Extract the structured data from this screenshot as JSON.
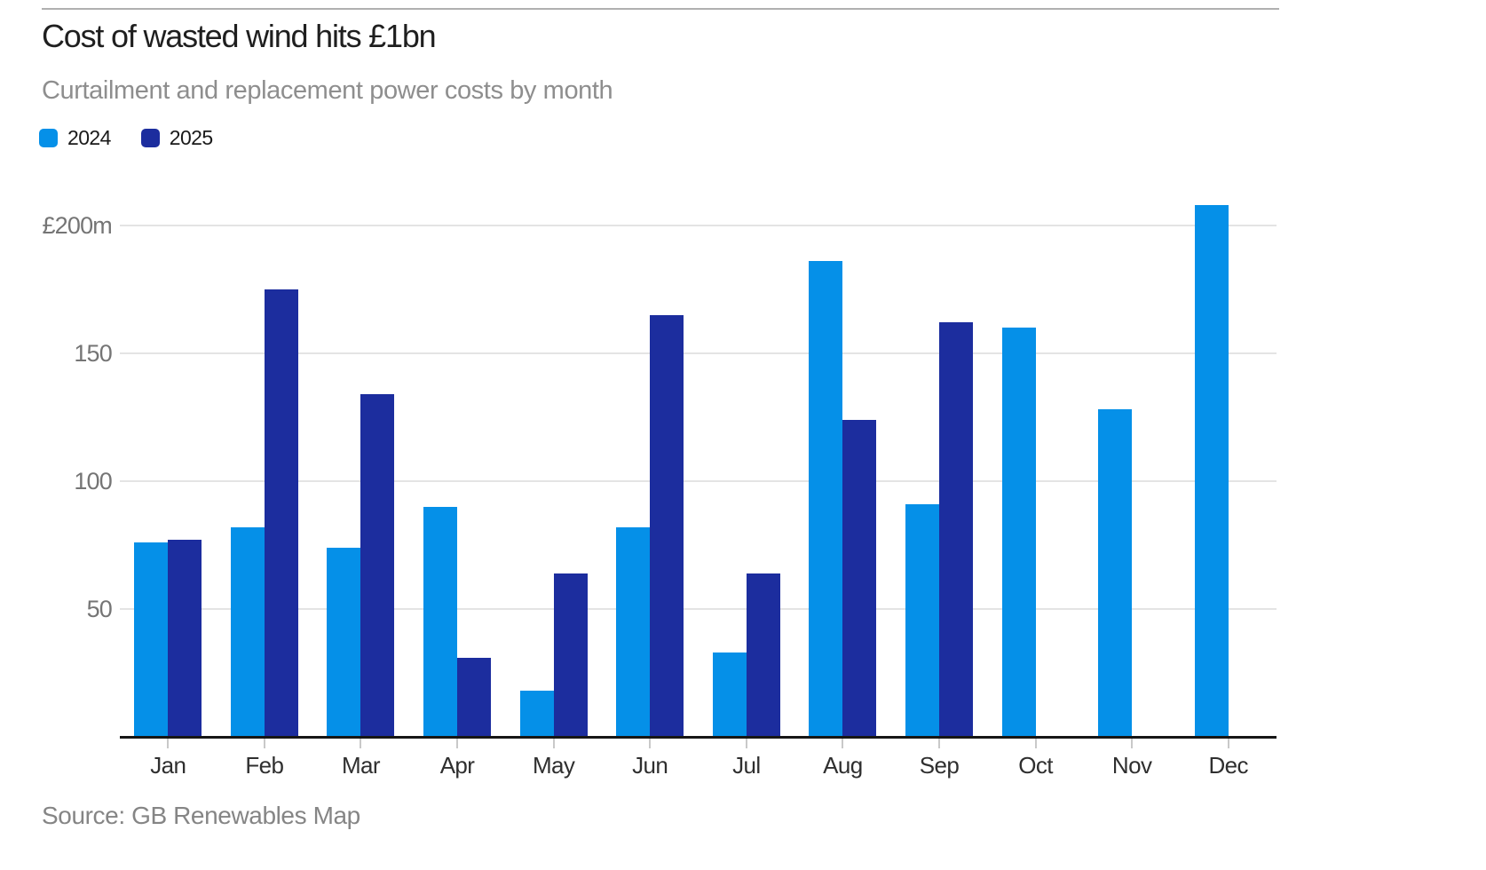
{
  "header": {
    "title": "Cost of wasted wind hits £1bn",
    "subtitle": "Curtailment and replacement power costs by month"
  },
  "legend": {
    "items": [
      {
        "label": "2024",
        "color": "#0590e8"
      },
      {
        "label": "2025",
        "color": "#1c2d9e"
      }
    ]
  },
  "source_note": "Source: GB Renewables Map",
  "colors": {
    "series_2024": "#0590e8",
    "series_2025": "#1c2d9e",
    "gridline": "#e4e4e4",
    "axis_line": "#161616",
    "top_rule": "#b0b0b0",
    "subtitle_text": "#8e8e8e",
    "ytick_text": "#757575",
    "xtick_text": "#2f2f2f",
    "source_text": "#858585"
  },
  "chart_data": {
    "type": "bar",
    "title": "Cost of wasted wind hits £1bn",
    "subtitle": "Curtailment and replacement power costs by month",
    "xlabel": "",
    "ylabel": "£m",
    "ylim": [
      0,
      210
    ],
    "grid": true,
    "legend_position": "top-left",
    "categories": [
      "Jan",
      "Feb",
      "Mar",
      "Apr",
      "May",
      "Jun",
      "Jul",
      "Aug",
      "Sep",
      "Oct",
      "Nov",
      "Dec"
    ],
    "yticks": [
      {
        "value": 50,
        "label": "50"
      },
      {
        "value": 100,
        "label": "100"
      },
      {
        "value": 150,
        "label": "150"
      },
      {
        "value": 200,
        "label": "£200m"
      }
    ],
    "series": [
      {
        "name": "2024",
        "color": "#0590e8",
        "values": [
          76,
          82,
          74,
          90,
          18,
          82,
          33,
          186,
          91,
          160,
          128,
          208
        ]
      },
      {
        "name": "2025",
        "color": "#1c2d9e",
        "values": [
          77,
          175,
          134,
          31,
          64,
          165,
          64,
          124,
          162,
          null,
          null,
          null
        ]
      }
    ]
  }
}
